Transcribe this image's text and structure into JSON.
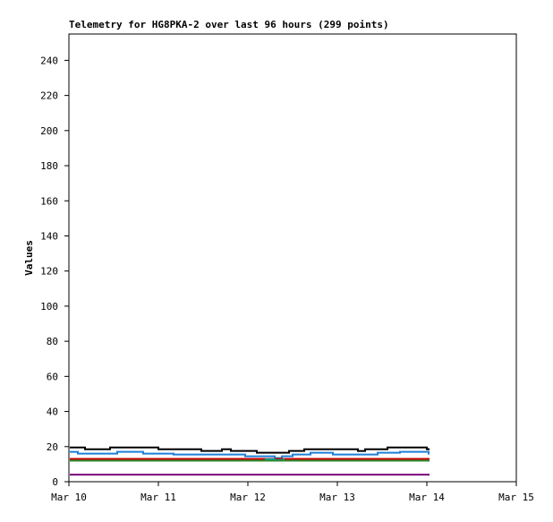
{
  "chart_data": {
    "type": "line",
    "step": "post",
    "title": "Telemetry for HG8PKA-2 over last 96 hours (299 points)",
    "y_label": "Values",
    "xlim": [
      10,
      15
    ],
    "xticks": [
      {
        "value": 10,
        "label": "Mar 10"
      },
      {
        "value": 11,
        "label": "Mar 11"
      },
      {
        "value": 12,
        "label": "Mar 12"
      },
      {
        "value": 13,
        "label": "Mar 13"
      },
      {
        "value": 14,
        "label": "Mar 14"
      },
      {
        "value": 15,
        "label": "Mar 15"
      }
    ],
    "ylim": [
      0,
      255
    ],
    "yticks": [
      0,
      20,
      40,
      60,
      80,
      100,
      120,
      140,
      160,
      180,
      200,
      220,
      240
    ],
    "series": [
      {
        "color": "#000000",
        "x": [
          10.02,
          10.18,
          10.46,
          11.0,
          11.48,
          11.71,
          11.81,
          12.1,
          12.46,
          12.63,
          13.23,
          13.31,
          13.56,
          14.0,
          14.02
        ],
        "values": [
          19.5,
          18.5,
          19.5,
          18.5,
          17.5,
          18.5,
          17.5,
          16.5,
          17.5,
          18.5,
          17.5,
          18.5,
          19.5,
          18.5,
          18.5
        ]
      },
      {
        "color": "#1e7fd8",
        "x": [
          10.02,
          10.1,
          10.54,
          10.83,
          11.17,
          11.97,
          12.3,
          12.38,
          12.5,
          12.7,
          12.95,
          13.45,
          13.7,
          14.02
        ],
        "values": [
          17,
          16,
          17,
          16,
          15.5,
          14.5,
          13.5,
          14.5,
          15.5,
          16.5,
          15.5,
          16.5,
          17,
          16
        ]
      },
      {
        "color": "#cc0000",
        "x": [
          10.02,
          14.02
        ],
        "values": [
          13,
          13
        ]
      },
      {
        "color": "#00a0a0",
        "x": [
          12.2,
          12.3,
          12.4
        ],
        "values": [
          12.8,
          12.3,
          12.8
        ]
      },
      {
        "color": "#2e8b2e",
        "x": [
          10.02,
          14.02
        ],
        "values": [
          12,
          12
        ]
      },
      {
        "color": "#7b007b",
        "x": [
          10.02,
          14.02
        ],
        "values": [
          4,
          4
        ]
      }
    ]
  }
}
